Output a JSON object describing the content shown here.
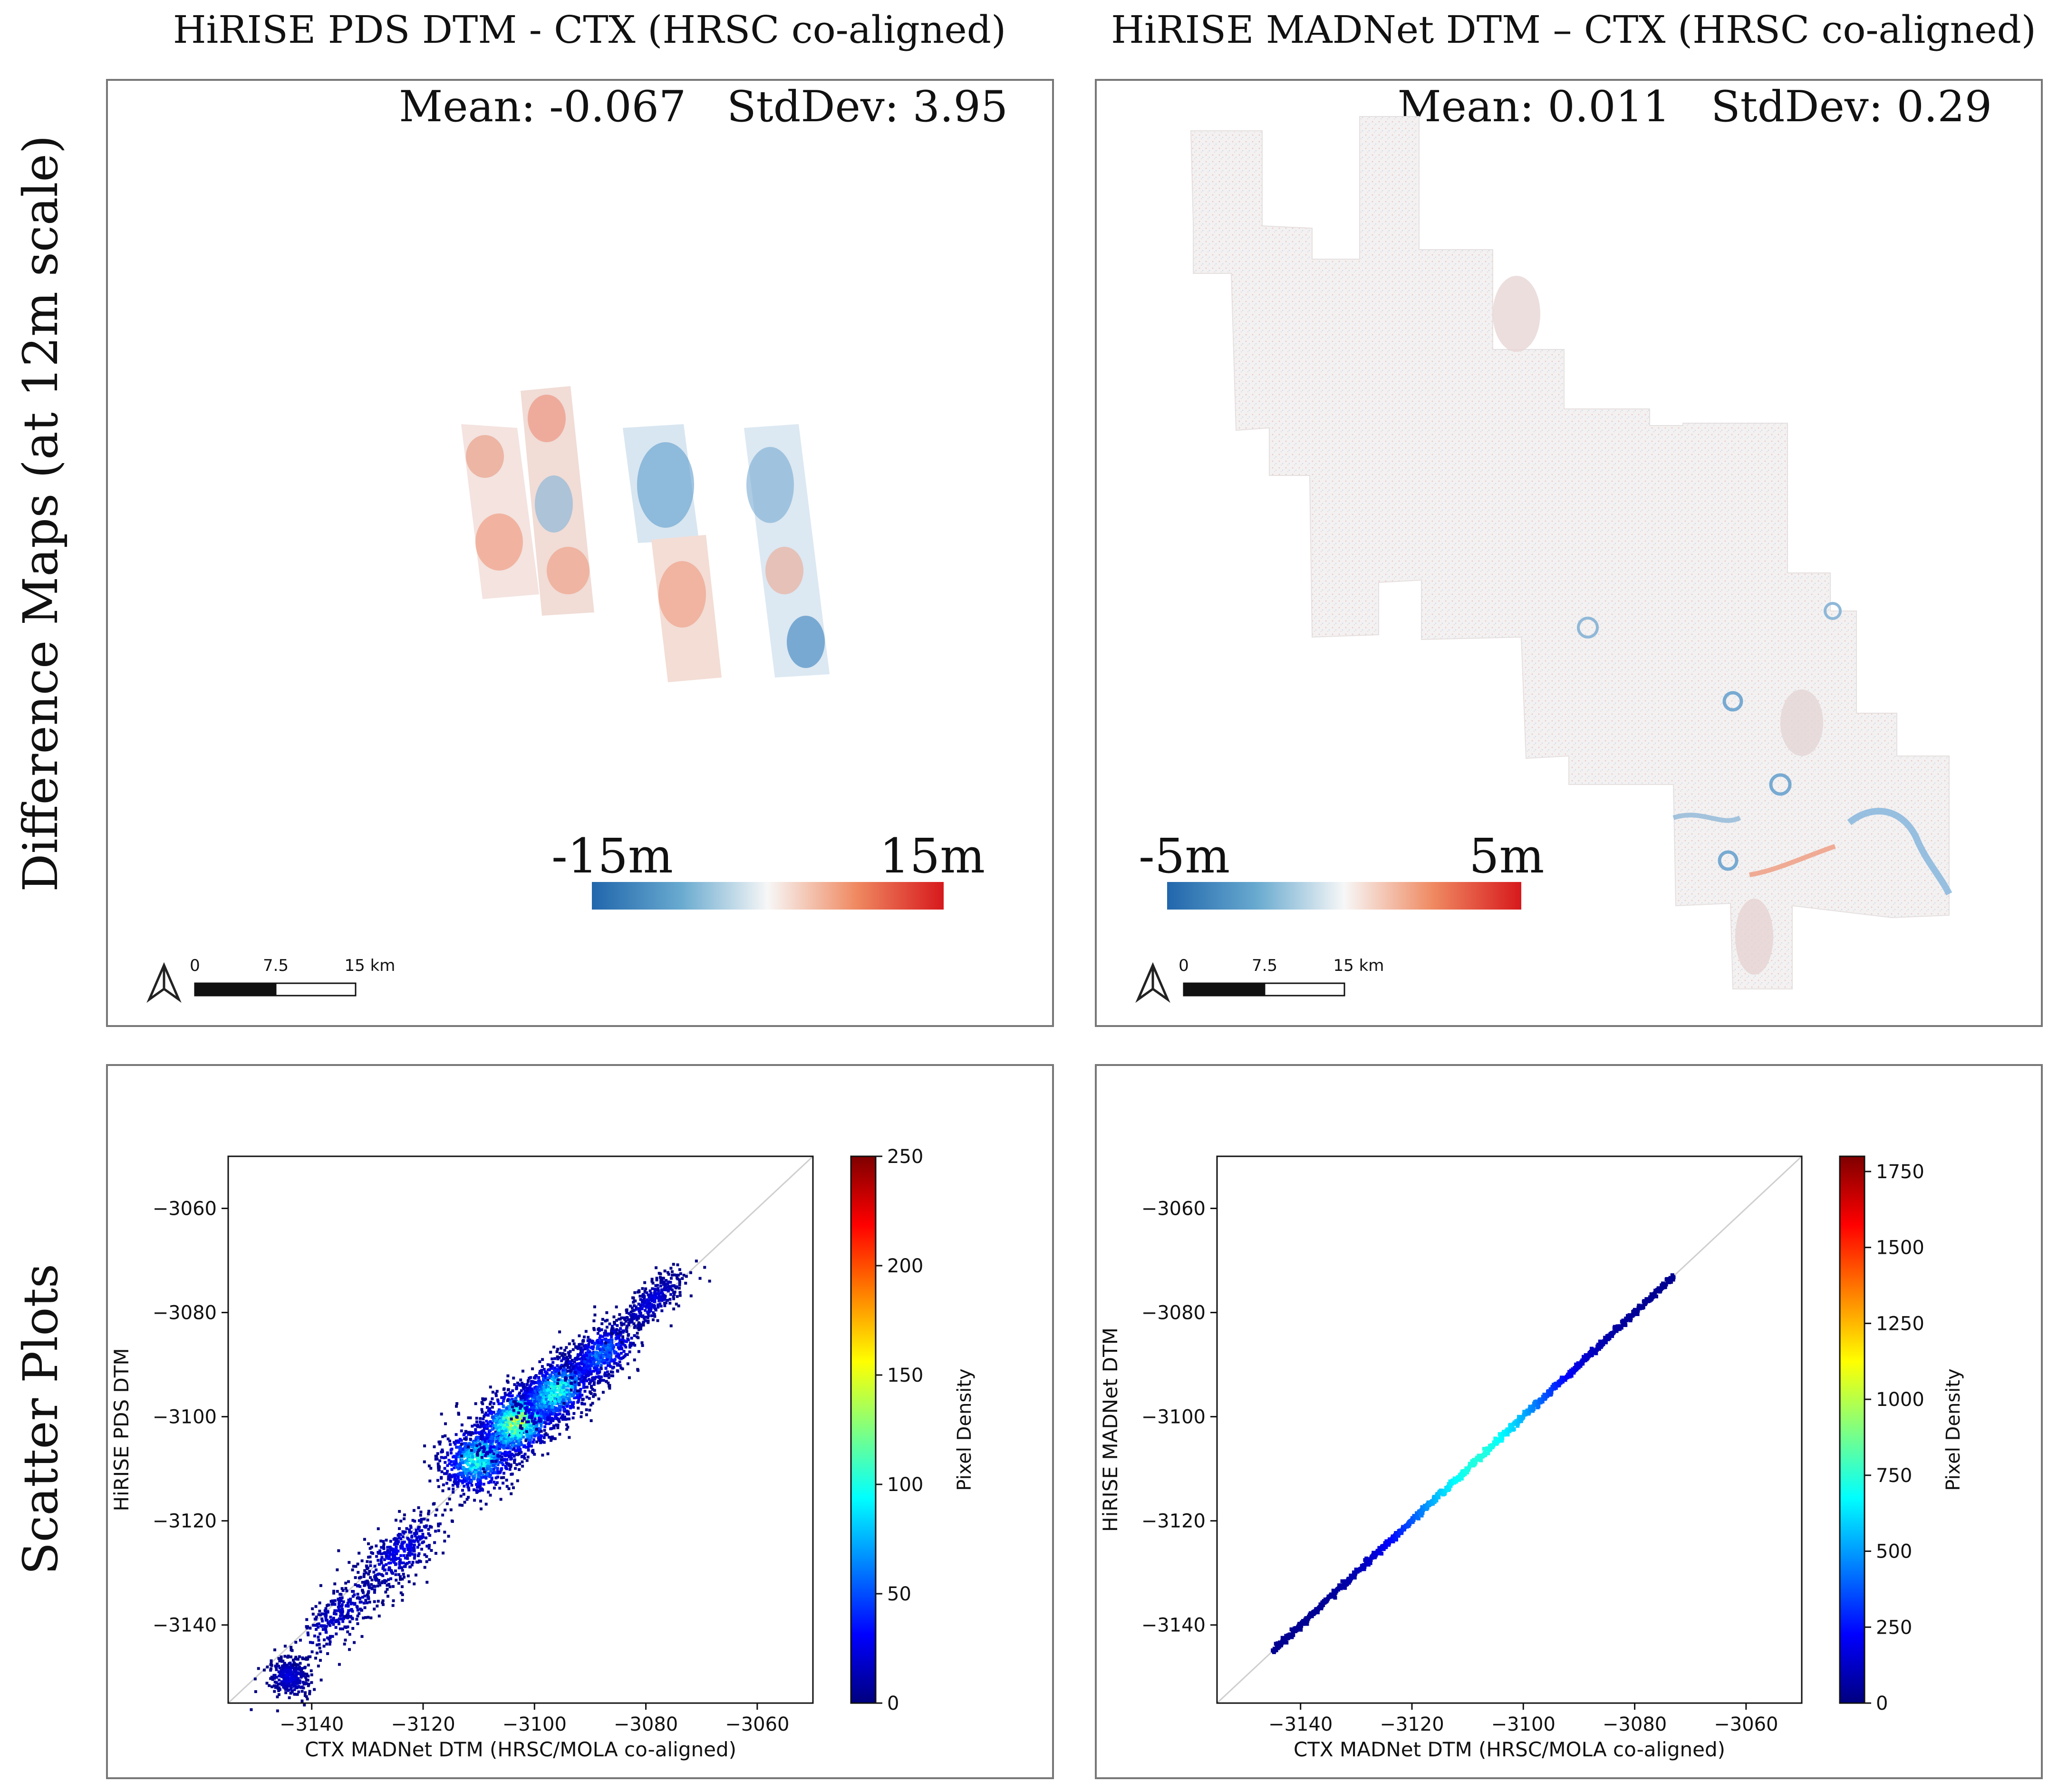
{
  "figure": {
    "row_labels": {
      "maps": "Difference Maps (at 12m scale)",
      "scatter": "Scatter Plots"
    },
    "columns": [
      {
        "title": "HiRISE PDS DTM - CTX (HRSC co-aligned)"
      },
      {
        "title": "HiRISE MADNet DTM – CTX (HRSC co-aligned)"
      }
    ],
    "scalebar": {
      "labels": [
        "0",
        "7.5",
        "15 km"
      ]
    },
    "maps": [
      {
        "stats": "Mean: -0.067   StdDev: 3.95",
        "colorbar": {
          "min_label": "-15m",
          "max_label": "15m",
          "colors": [
            "#2166ac",
            "#67a9cf",
            "#f7f7f7",
            "#ef8a62",
            "#d7191c"
          ]
        }
      },
      {
        "stats": "Mean: 0.011   StdDev: 0.29",
        "colorbar": {
          "min_label": "-5m",
          "max_label": "5m",
          "colors": [
            "#2166ac",
            "#67a9cf",
            "#f7f7f7",
            "#ef8a62",
            "#d7191c"
          ]
        }
      }
    ],
    "colorscale": [
      "#00007f",
      "#0000ff",
      "#0080ff",
      "#00ffff",
      "#80ff80",
      "#ffff00",
      "#ff8000",
      "#ff0000",
      "#7f0000"
    ]
  },
  "chart_data": [
    {
      "type": "scatter",
      "title": "HiRISE PDS DTM - CTX (HRSC co-aligned)",
      "xlabel": "CTX MADNet DTM (HRSC/MOLA co-aligned)",
      "ylabel": "HiRISE PDS DTM",
      "xlim": [
        -3155,
        -3050
      ],
      "ylim": [
        -3155,
        -3050
      ],
      "xticks": [
        -3140,
        -3120,
        -3100,
        -3080,
        -3060
      ],
      "yticks": [
        -3140,
        -3120,
        -3100,
        -3080,
        -3060
      ],
      "xtick_labels": [
        "−3140",
        "−3120",
        "−3100",
        "−3080",
        "−3060"
      ],
      "ytick_labels": [
        "−3140",
        "−3120",
        "−3100",
        "−3080",
        "−3060"
      ],
      "reference_line": "y = x",
      "colorbar": {
        "label": "Pixel Density",
        "min": 0,
        "max": 250,
        "ticks": [
          0,
          50,
          100,
          150,
          200,
          250
        ],
        "tick_labels": [
          "0",
          "50",
          "100",
          "150",
          "200",
          "250"
        ]
      },
      "density_clusters": [
        {
          "x": -3144,
          "y": -3150,
          "spread": 1.8,
          "width": 2.0,
          "density": 30
        },
        {
          "x": -3135,
          "y": -3138,
          "spread": 6.0,
          "width": 2.0,
          "density": 25
        },
        {
          "x": -3124,
          "y": -3126,
          "spread": 5.0,
          "width": 2.3,
          "density": 35
        },
        {
          "x": -3110,
          "y": -3108,
          "spread": 3.5,
          "width": 3.0,
          "density": 120
        },
        {
          "x": -3103,
          "y": -3101,
          "spread": 4.0,
          "width": 2.8,
          "density": 160
        },
        {
          "x": -3096,
          "y": -3095,
          "spread": 4.0,
          "width": 2.5,
          "density": 120
        },
        {
          "x": -3088,
          "y": -3088,
          "spread": 4.0,
          "width": 2.2,
          "density": 70
        },
        {
          "x": -3079,
          "y": -3078,
          "spread": 4.0,
          "width": 1.5,
          "density": 30
        }
      ]
    },
    {
      "type": "scatter",
      "title": "HiRISE MADNet DTM – CTX (HRSC co-aligned)",
      "xlabel": "CTX MADNet DTM (HRSC/MOLA co-aligned)",
      "ylabel": "HiRISE MADNet DTM",
      "xlim": [
        -3155,
        -3050
      ],
      "ylim": [
        -3155,
        -3050
      ],
      "xticks": [
        -3140,
        -3120,
        -3100,
        -3080,
        -3060
      ],
      "yticks": [
        -3140,
        -3120,
        -3100,
        -3080,
        -3060
      ],
      "xtick_labels": [
        "−3140",
        "−3120",
        "−3100",
        "−3080",
        "−3060"
      ],
      "ytick_labels": [
        "−3140",
        "−3120",
        "−3100",
        "−3080",
        "−3060"
      ],
      "reference_line": "y = x",
      "colorbar": {
        "label": "Pixel Density",
        "min": 0,
        "max": 1800,
        "ticks": [
          0,
          250,
          500,
          750,
          1000,
          1250,
          1500,
          1750
        ],
        "tick_labels": [
          "0",
          "250",
          "500",
          "750",
          "1000",
          "1250",
          "1500",
          "1750"
        ]
      },
      "line_segment": {
        "x_start": -3145,
        "x_end": -3073,
        "peak_x": -3108,
        "peak_density": 700
      }
    }
  ]
}
